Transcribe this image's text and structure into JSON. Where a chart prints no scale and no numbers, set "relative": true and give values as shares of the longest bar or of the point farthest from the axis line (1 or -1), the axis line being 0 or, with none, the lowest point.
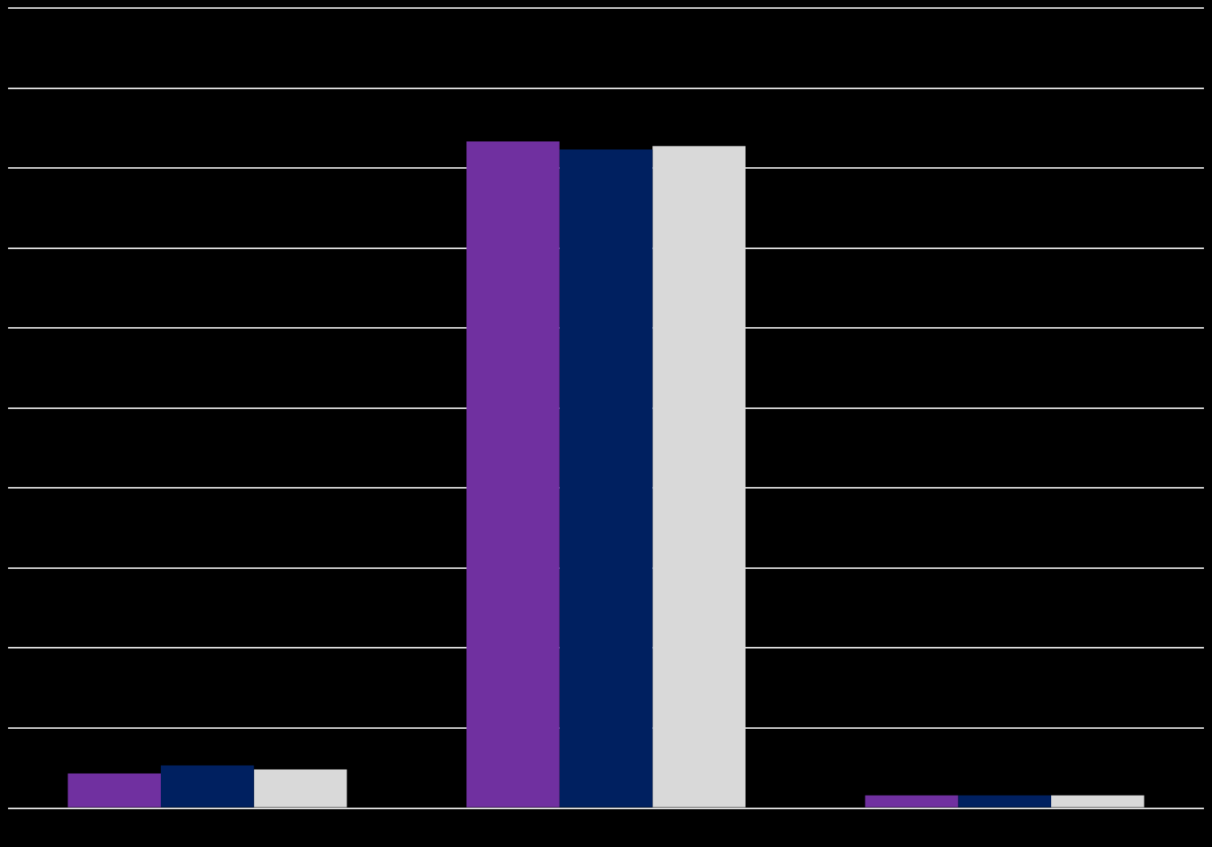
{
  "chart_data": {
    "type": "bar",
    "relative": true,
    "categories": [
      null,
      null,
      null
    ],
    "series": [
      {
        "color": "#7030a0",
        "values": [
          0.052,
          1,
          0.019
        ]
      },
      {
        "color": "#002060",
        "values": [
          0.064,
          0.988,
          0.019
        ]
      },
      {
        "color": "#d9d9d9",
        "values": [
          0.058,
          0.993,
          0.019
        ]
      }
    ],
    "grid": "y",
    "legend": false
  }
}
